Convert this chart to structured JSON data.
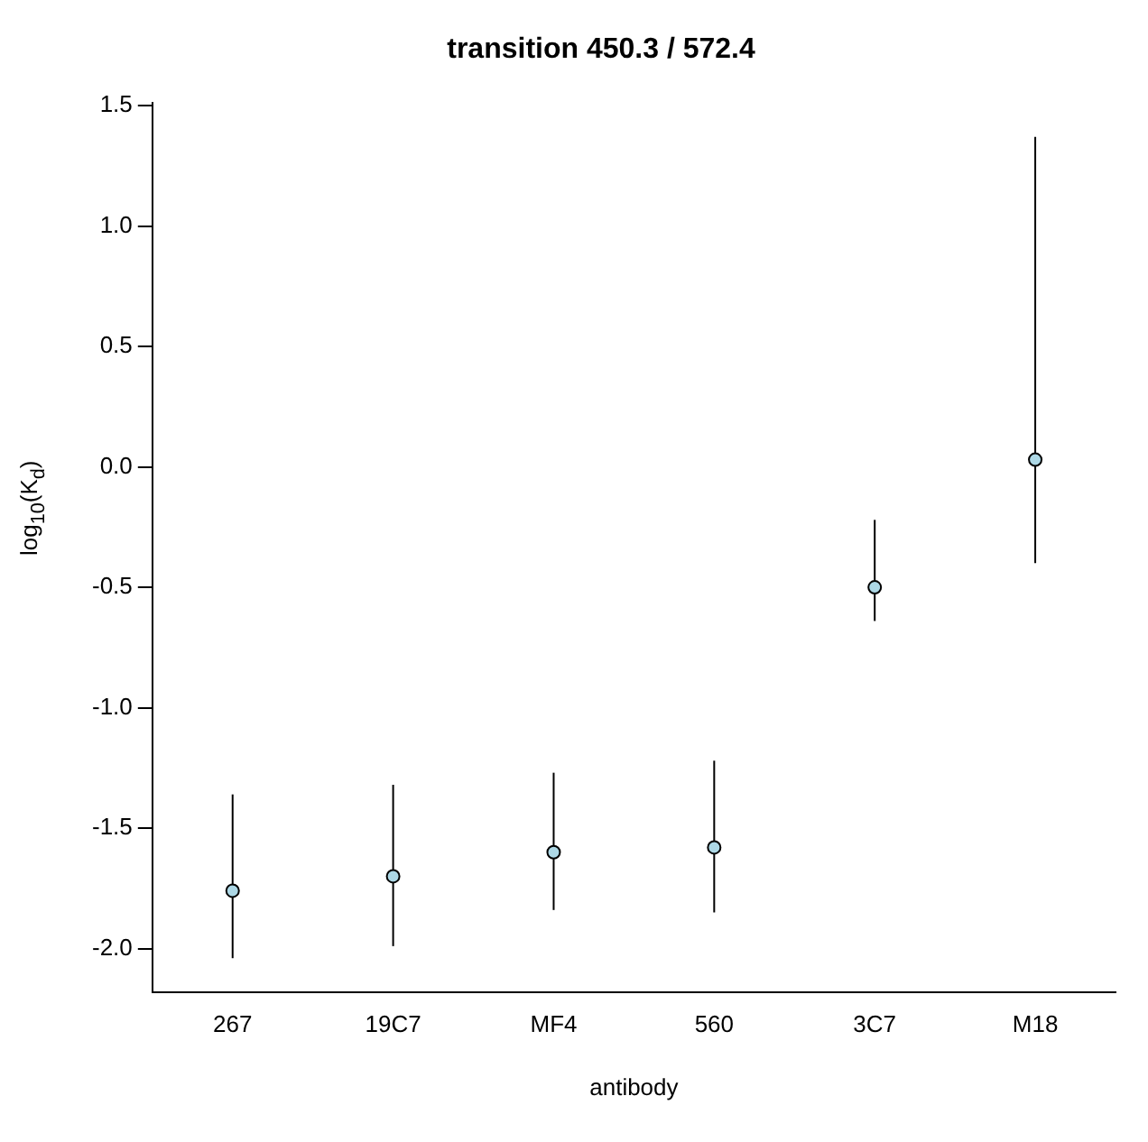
{
  "chart_data": {
    "type": "scatter",
    "title": "transition 450.3 / 572.4",
    "xlabel": "antibody",
    "ylabel": "log$_{10}$(K$_{d}$)",
    "categories": [
      "267",
      "19C7",
      "MF4",
      "560",
      "3C7",
      "M18"
    ],
    "values": [
      -1.76,
      -1.7,
      -1.6,
      -1.58,
      -0.5,
      0.03
    ],
    "errors": [
      [
        -2.04,
        -1.36
      ],
      [
        -1.99,
        -1.32
      ],
      [
        -1.84,
        -1.27
      ],
      [
        -1.85,
        -1.22
      ],
      [
        -0.64,
        -0.22
      ],
      [
        -0.4,
        1.37
      ]
    ],
    "color": "#add8e6",
    "marker": "circle",
    "ylim": [
      -2.18,
      1.51
    ],
    "yticks": [
      {
        "value": -2,
        "label": "-2.0"
      },
      -1.5,
      {
        "value": -1,
        "label": "-1.0"
      },
      -0.5,
      {
        "value": 0,
        "label": "0.0"
      },
      0.5,
      {
        "value": 1,
        "label": "1.0"
      },
      1.5
    ],
    "grid": false,
    "legend": false
  }
}
